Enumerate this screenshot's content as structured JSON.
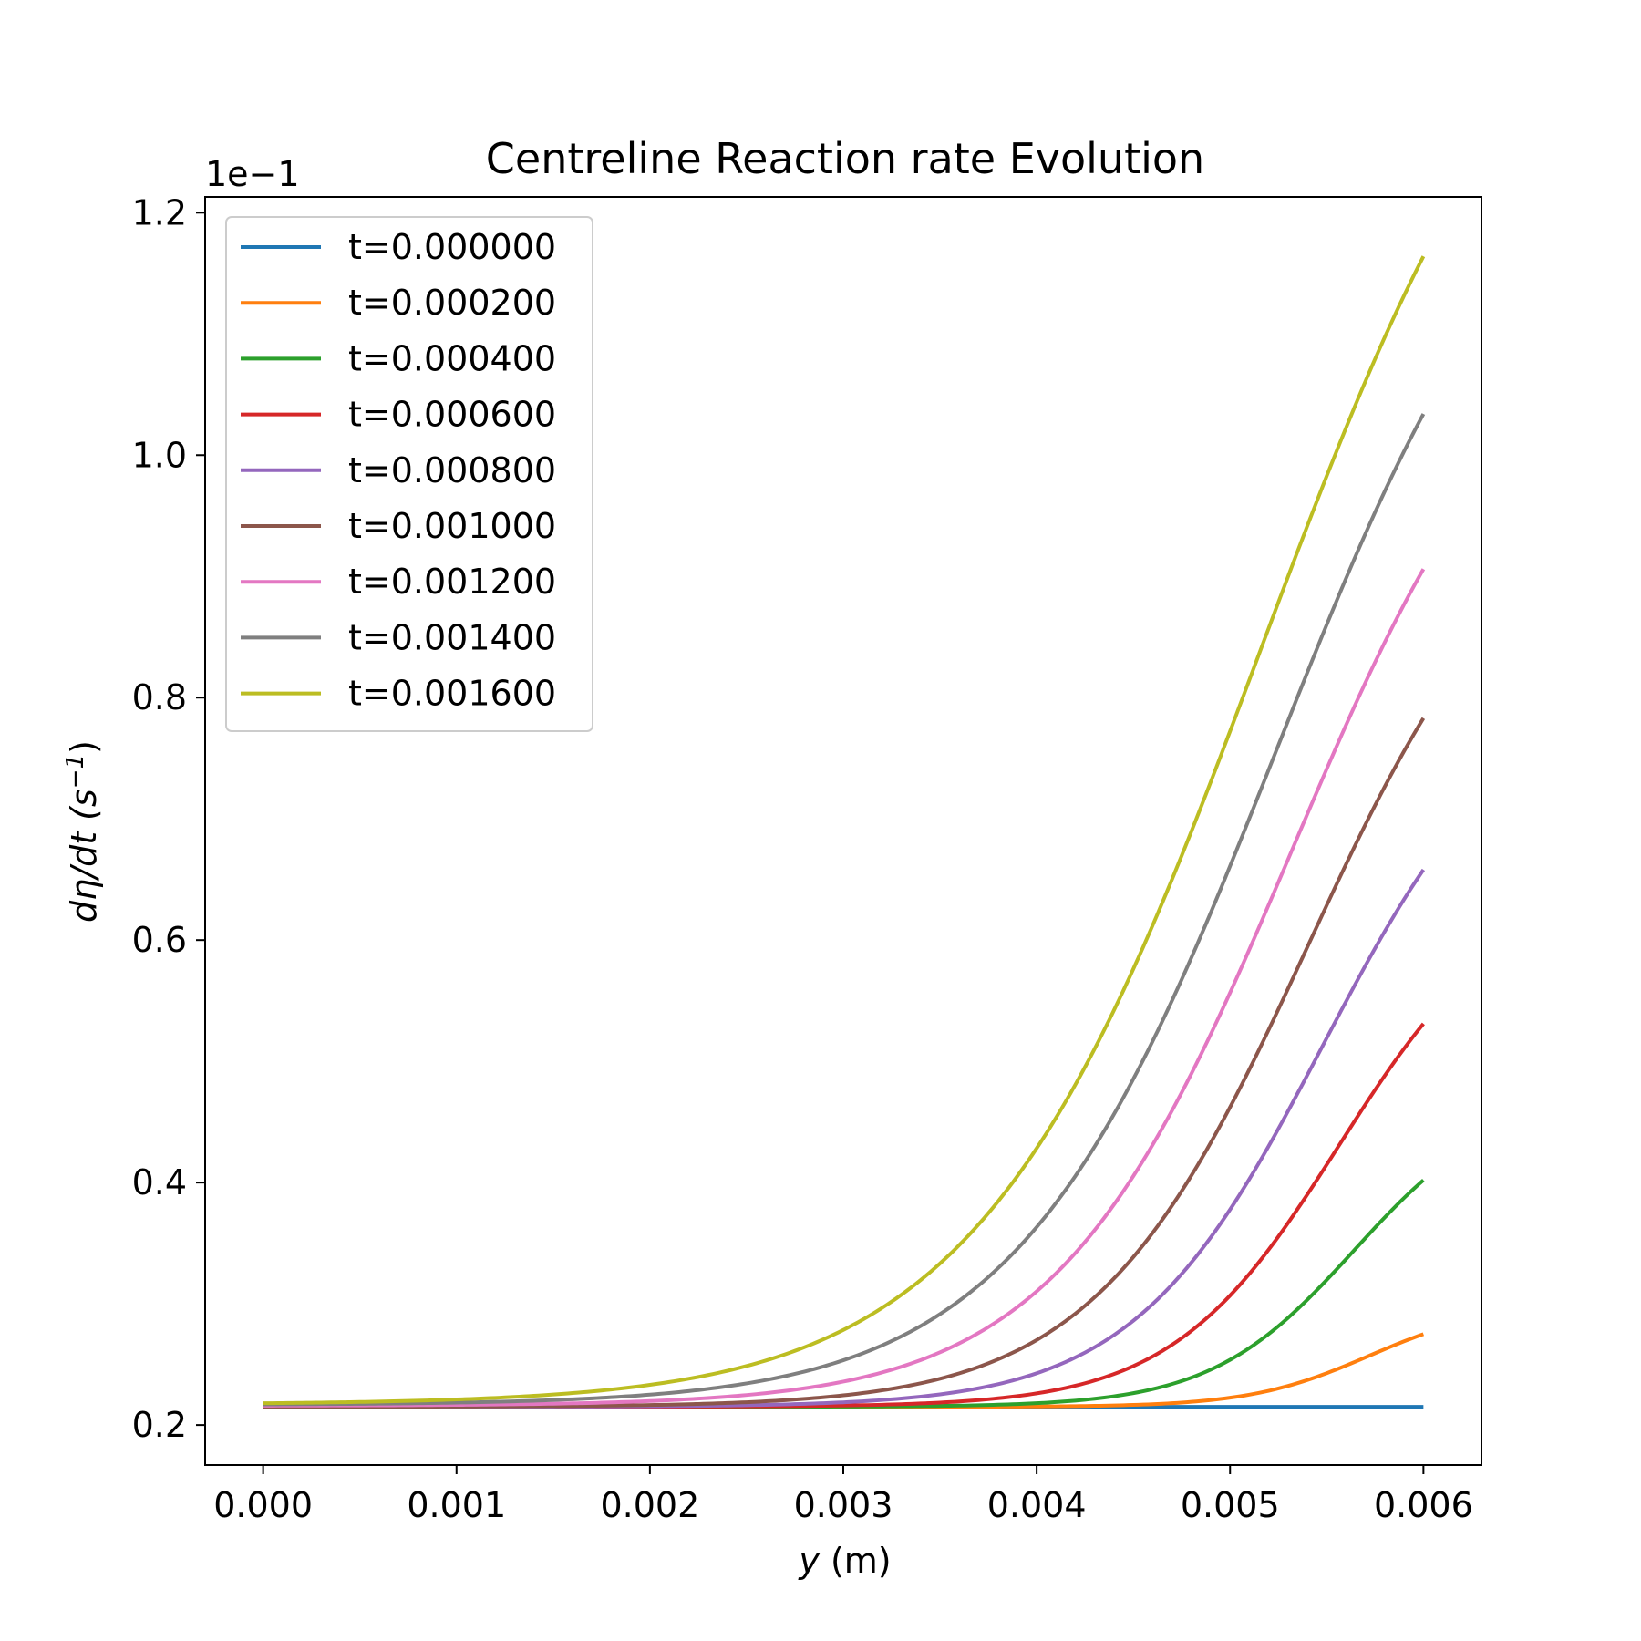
{
  "chart_data": {
    "type": "line",
    "title": "Centreline Reaction rate Evolution",
    "xlabel": {
      "var": "y",
      "unit": " (m)"
    },
    "ylabel": {
      "prefix": "dη/dt (s",
      "sup": "−1",
      "suffix": ")"
    },
    "y_offset_text": "1e−1",
    "xlim": [
      -0.0003,
      0.0063
    ],
    "ylim": [
      0.167,
      1.213
    ],
    "x_ticks": [
      0.0,
      0.001,
      0.002,
      0.003,
      0.004,
      0.005,
      0.006
    ],
    "x_tick_labels": [
      "0.000",
      "0.001",
      "0.002",
      "0.003",
      "0.004",
      "0.005",
      "0.006"
    ],
    "y_ticks": [
      0.2,
      0.4,
      0.6,
      0.8,
      1.0,
      1.2
    ],
    "y_tick_labels": [
      "0.2",
      "0.4",
      "0.6",
      "0.8",
      "1.0",
      "1.2"
    ],
    "grid": false,
    "legend_position": "top-left",
    "series": [
      {
        "name": "t=0.000000",
        "color": "#1f77b4",
        "baseline": 0.215,
        "peak": 0.215
      },
      {
        "name": "t=0.000200",
        "color": "#ff7f0e",
        "baseline": 0.215,
        "peak": 0.275
      },
      {
        "name": "t=0.000400",
        "color": "#2ca02c",
        "baseline": 0.215,
        "peak": 0.402
      },
      {
        "name": "t=0.000600",
        "color": "#d62728",
        "baseline": 0.215,
        "peak": 0.531
      },
      {
        "name": "t=0.000800",
        "color": "#9467bd",
        "baseline": 0.215,
        "peak": 0.658
      },
      {
        "name": "t=0.001000",
        "color": "#8c564b",
        "baseline": 0.215,
        "peak": 0.783
      },
      {
        "name": "t=0.001200",
        "color": "#e377c2",
        "baseline": 0.216,
        "peak": 0.906
      },
      {
        "name": "t=0.001400",
        "color": "#7f7f7f",
        "baseline": 0.217,
        "peak": 1.034
      },
      {
        "name": "t=0.001600",
        "color": "#bcbd22",
        "baseline": 0.218,
        "peak": 1.164
      }
    ]
  }
}
